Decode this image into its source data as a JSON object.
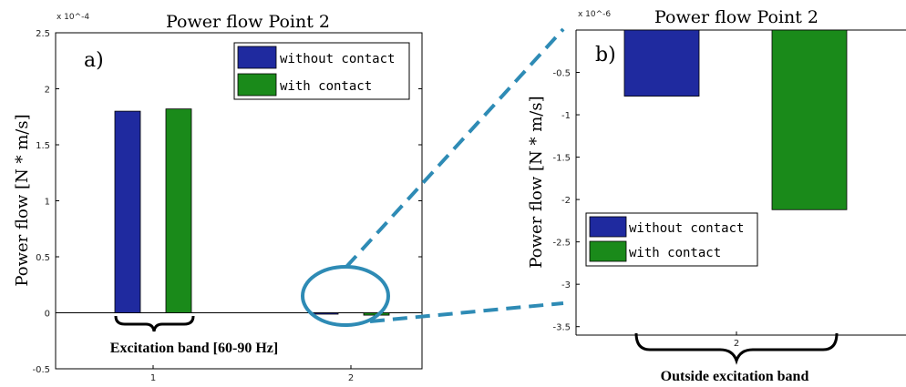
{
  "chart_data": [
    {
      "panel": "a)",
      "type": "bar",
      "title": "Power flow Point 2",
      "ylabel": "Power flow [N * m/s]",
      "y_exponent": "x 10^-4",
      "categories": [
        "1",
        "2"
      ],
      "series": [
        {
          "name": "without contact",
          "color": "#1f2a9f",
          "values": [
            1.8,
            -0.0078
          ]
        },
        {
          "name": "with contact",
          "color": "#1a8a1a",
          "values": [
            1.82,
            -0.0212
          ]
        }
      ],
      "ylim": [
        -0.5,
        2.5
      ],
      "yticks": [
        "-0.5",
        "0",
        "0.5",
        "1",
        "1.5",
        "2",
        "2.5"
      ],
      "legend": "top-right",
      "annotation": "Excitation band [60-90 Hz]"
    },
    {
      "panel": "b)",
      "type": "bar",
      "title": "Power flow Point 2",
      "ylabel": "Power flow [N * m/s]",
      "y_exponent": "x 10^-6",
      "categories": [
        "2"
      ],
      "series": [
        {
          "name": "without contact",
          "color": "#1f2a9f",
          "values": [
            -0.78
          ]
        },
        {
          "name": "with contact",
          "color": "#1a8a1a",
          "values": [
            -2.12
          ]
        }
      ],
      "ylim": [
        -3.6,
        0
      ],
      "yticks": [
        "-0.5",
        "-1",
        "-1.5",
        "-2",
        "-2.5",
        "-3",
        "-3.5"
      ],
      "legend": "left",
      "annotation": "Outside excitation band"
    }
  ],
  "colors": {
    "zoom_accent": "#2e8bb5"
  }
}
